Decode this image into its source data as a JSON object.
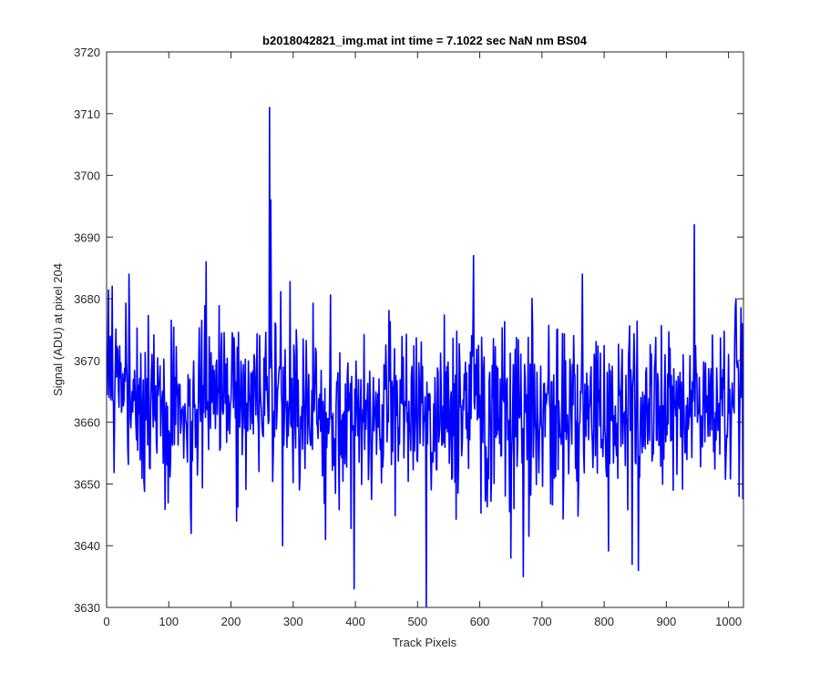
{
  "chart_data": {
    "type": "line",
    "title": "b2018042821_img.mat int time = 7.1022 sec  NaN nm BS04",
    "xlabel": "Track Pixels",
    "ylabel": "Signal (ADU) at pixel 204",
    "xlim": [
      0,
      1024
    ],
    "ylim": [
      3630,
      3720
    ],
    "xticks": [
      0,
      100,
      200,
      300,
      400,
      500,
      600,
      700,
      800,
      900,
      1000
    ],
    "yticks": [
      3630,
      3640,
      3650,
      3660,
      3670,
      3680,
      3690,
      3700,
      3710,
      3720
    ],
    "grid": false,
    "line_color": "#0000ff",
    "series_baseline": {
      "x": [
        1,
        50,
        100,
        150,
        200,
        250,
        300,
        350,
        400,
        450,
        500,
        550,
        600,
        650,
        700,
        750,
        800,
        850,
        900,
        950,
        1000,
        1024
      ],
      "y": [
        3664,
        3663,
        3662,
        3662,
        3663,
        3663,
        3662,
        3661,
        3661,
        3662,
        3661,
        3662,
        3663,
        3662,
        3662,
        3661,
        3661,
        3662,
        3662,
        3662,
        3663,
        3663
      ]
    },
    "noise_amplitude": 7,
    "notable_points": [
      {
        "x": 36,
        "y": 3684
      },
      {
        "x": 136,
        "y": 3642
      },
      {
        "x": 160,
        "y": 3686
      },
      {
        "x": 209,
        "y": 3644
      },
      {
        "x": 262,
        "y": 3711
      },
      {
        "x": 264,
        "y": 3696
      },
      {
        "x": 283,
        "y": 3640
      },
      {
        "x": 352,
        "y": 3641
      },
      {
        "x": 398,
        "y": 3633
      },
      {
        "x": 514,
        "y": 3630
      },
      {
        "x": 590,
        "y": 3687
      },
      {
        "x": 650,
        "y": 3638
      },
      {
        "x": 670,
        "y": 3635
      },
      {
        "x": 845,
        "y": 3637
      },
      {
        "x": 855,
        "y": 3636
      },
      {
        "x": 945,
        "y": 3692
      },
      {
        "x": 1012,
        "y": 3680
      },
      {
        "x": 1017,
        "y": 3648
      }
    ]
  }
}
